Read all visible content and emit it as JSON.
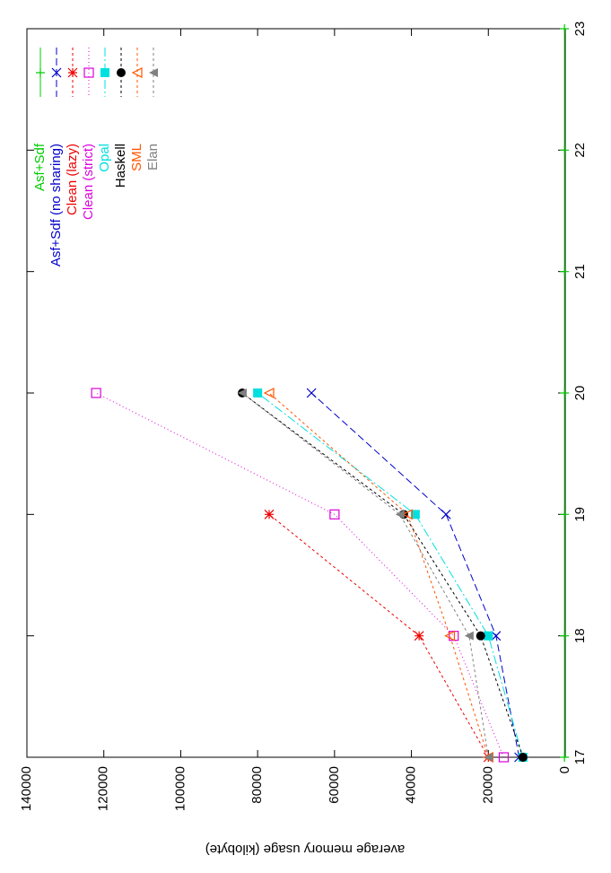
{
  "chart_data": {
    "type": "line",
    "orientation": "rotated-90-clockwise",
    "ylabel": "average memory usage (kilobyte)",
    "xlim": [
      17,
      23
    ],
    "ylim": [
      0,
      140000
    ],
    "x_ticks": [
      "17",
      "18",
      "19",
      "20",
      "21",
      "22",
      "23"
    ],
    "y_ticks": [
      "0",
      "20000",
      "40000",
      "60000",
      "80000",
      "100000",
      "120000",
      "140000"
    ],
    "legend_position": "top-right",
    "series": [
      {
        "name": "Asf+Sdf",
        "color": "#00cc00",
        "marker": "plus",
        "dash": "",
        "x": [
          17,
          18,
          19,
          20,
          21,
          22,
          23
        ],
        "y": [
          200,
          200,
          200,
          200,
          200,
          200,
          200
        ]
      },
      {
        "name": "Asf+Sdf (no sharing)",
        "color": "#0000cc",
        "marker": "cross",
        "dash": "8,4",
        "x": [
          17,
          18,
          19,
          20
        ],
        "y": [
          12000,
          18000,
          31000,
          66000
        ]
      },
      {
        "name": "Clean (lazy)",
        "color": "#ee0000",
        "marker": "star",
        "dash": "3,3",
        "x": [
          17,
          18,
          19,
          20
        ],
        "y": [
          20000,
          38000,
          77000,
          null
        ]
      },
      {
        "name": "Clean (strict)",
        "color": "#dd00dd",
        "marker": "box",
        "dash": "1,3",
        "x": [
          17,
          18,
          19,
          20
        ],
        "y": [
          16000,
          29000,
          60000,
          122000
        ]
      },
      {
        "name": "Opal",
        "color": "#00e0e0",
        "marker": "fbox",
        "dash": "10,3,2,3",
        "x": [
          17,
          18,
          19,
          20
        ],
        "y": [
          11000,
          20000,
          39000,
          80000
        ]
      },
      {
        "name": "Haskell",
        "color": "#000000",
        "marker": "fcircle",
        "dash": "3,3",
        "x": [
          17,
          18,
          19,
          20
        ],
        "y": [
          11000,
          22000,
          42000,
          84000
        ]
      },
      {
        "name": "SML",
        "color": "#ff5500",
        "marker": "triangle",
        "dash": "3,3",
        "x": [
          17,
          18,
          19,
          20
        ],
        "y": [
          20000,
          30000,
          41000,
          77000
        ]
      },
      {
        "name": "Elan",
        "color": "#808080",
        "marker": "ftriangle",
        "dash": "3,3",
        "x": [
          17,
          18,
          19,
          20
        ],
        "y": [
          20000,
          25000,
          43000,
          84000
        ]
      }
    ]
  }
}
